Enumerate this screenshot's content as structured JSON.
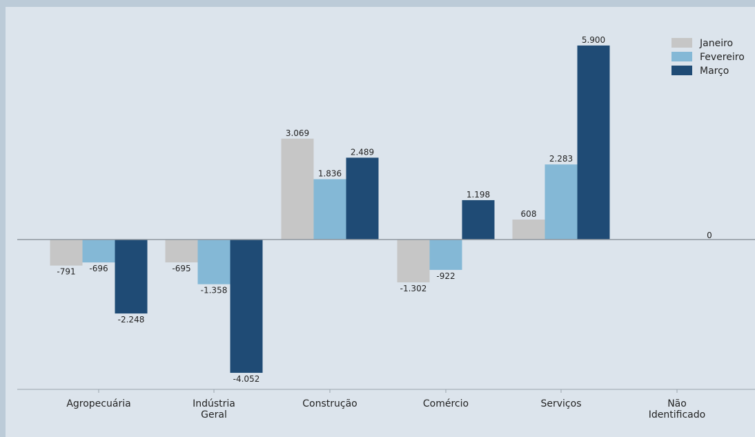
{
  "chart_data": {
    "type": "bar",
    "categories": [
      "Agropecuária",
      "Indústria\nGeral",
      "Construção",
      "Comércio",
      "Serviços",
      "Não\nIdentificado"
    ],
    "series": [
      {
        "name": "Janeiro",
        "color": "#c6c6c6",
        "values": [
          -791,
          -695,
          3069,
          -1302,
          608,
          0
        ],
        "labels": [
          "-791",
          "-695",
          "3.069",
          "-1.302",
          "608",
          ""
        ]
      },
      {
        "name": "Fevereiro",
        "color": "#84b8d6",
        "values": [
          -696,
          -1358,
          1836,
          -922,
          2283,
          0
        ],
        "labels": [
          "-696",
          "-1.358",
          "1.836",
          "-922",
          "2.283",
          ""
        ]
      },
      {
        "name": "Março",
        "color": "#1f4b75",
        "values": [
          -2248,
          -4052,
          2489,
          1198,
          5900,
          0
        ],
        "labels": [
          "-2.248",
          "-4.052",
          "2.489",
          "1.198",
          "5.900",
          "0"
        ]
      }
    ],
    "ylim": [
      -4500,
      6400
    ],
    "legend": "top-right",
    "grid": false,
    "title": "",
    "xlabel": "",
    "ylabel": ""
  }
}
